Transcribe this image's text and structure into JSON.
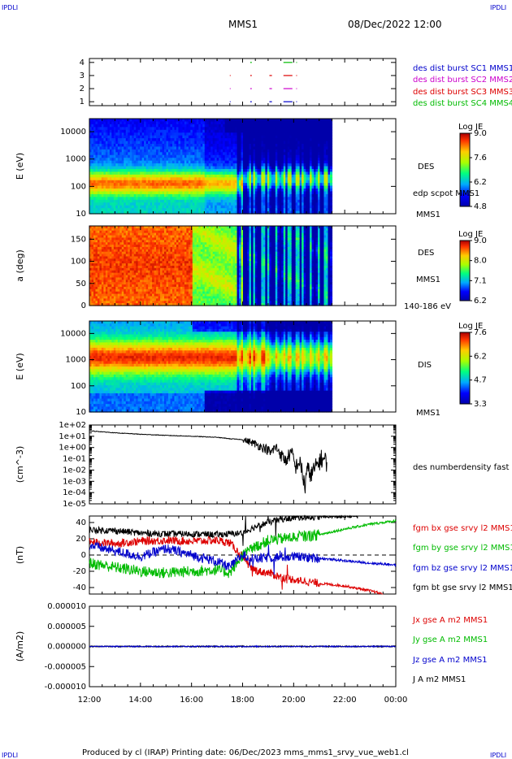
{
  "header": {
    "corner_left": "IPDLI",
    "corner_right": "IPDLI",
    "spacecraft": "MMS1",
    "datetime": "08/Dec/2022 12:00"
  },
  "footer": {
    "text": "Produced by cl (IRAP)   Printing date: 06/Dec/2023   mms_mms1_srvy_vue_web1.cl",
    "corner_left": "IPDLI",
    "corner_right": "IPDLI"
  },
  "time_axis": {
    "start": "12:00",
    "end": "00:00",
    "tick_labels": [
      "12:00",
      "14:00",
      "16:00",
      "18:00",
      "20:00",
      "22:00",
      "00:00"
    ],
    "data_end": "21:30"
  },
  "colors": {
    "mms1": "#0000cc",
    "mms2": "#cc00cc",
    "mms3": "#dd0000",
    "mms4": "#00bb00",
    "black": "#000000"
  },
  "chart_data": [
    {
      "id": "burst",
      "type": "scatter",
      "ylabel": "",
      "yticks": [
        "1",
        "2",
        "3",
        "4"
      ],
      "legend": [
        {
          "text": "des dist burst SC1 MMS1",
          "color": "#0000cc"
        },
        {
          "text": "des dist burst SC2 MMS2",
          "color": "#cc00cc"
        },
        {
          "text": "des dist burst SC3 MMS3",
          "color": "#dd0000"
        },
        {
          "text": "des dist burst SC4 MMS4",
          "color": "#00bb00"
        }
      ],
      "segments": [
        {
          "sc": 1,
          "t0": 17.5,
          "t1": 17.53
        },
        {
          "sc": 1,
          "t0": 18.3,
          "t1": 18.36
        },
        {
          "sc": 1,
          "t0": 19.05,
          "t1": 19.15
        },
        {
          "sc": 1,
          "t0": 19.6,
          "t1": 19.95
        },
        {
          "sc": 1,
          "t0": 20.1,
          "t1": 20.13
        },
        {
          "sc": 2,
          "t0": 17.5,
          "t1": 17.53
        },
        {
          "sc": 2,
          "t0": 18.3,
          "t1": 18.36
        },
        {
          "sc": 2,
          "t0": 19.05,
          "t1": 19.15
        },
        {
          "sc": 2,
          "t0": 19.6,
          "t1": 19.95
        },
        {
          "sc": 2,
          "t0": 20.1,
          "t1": 20.13
        },
        {
          "sc": 3,
          "t0": 17.5,
          "t1": 17.53
        },
        {
          "sc": 3,
          "t0": 18.3,
          "t1": 18.36
        },
        {
          "sc": 3,
          "t0": 19.05,
          "t1": 19.15
        },
        {
          "sc": 3,
          "t0": 19.6,
          "t1": 19.95
        },
        {
          "sc": 3,
          "t0": 20.1,
          "t1": 20.13
        },
        {
          "sc": 4,
          "t0": 18.3,
          "t1": 18.36
        },
        {
          "sc": 4,
          "t0": 19.6,
          "t1": 19.95
        },
        {
          "sc": 4,
          "t0": 20.1,
          "t1": 20.13
        }
      ]
    },
    {
      "id": "des_energy",
      "type": "heatmap",
      "ylabel": "E (eV)",
      "yticks": [
        "10",
        "100",
        "1000",
        "10000"
      ],
      "y_log": true,
      "ylim": [
        10,
        30000
      ],
      "right_labels": [
        "DES",
        "edp scpot MMS1",
        "MMS1"
      ],
      "colorbar": {
        "title": "Log JE",
        "min": 4.8,
        "max": 9.0,
        "ticks": [
          "9.0",
          "7.6",
          "6.2",
          "4.8"
        ]
      }
    },
    {
      "id": "des_pitch",
      "type": "heatmap",
      "ylabel": "a (deg)",
      "yticks": [
        "0",
        "50",
        "100",
        "150"
      ],
      "ylim": [
        0,
        180
      ],
      "right_labels": [
        "DES",
        "MMS1",
        "140-186 eV"
      ],
      "colorbar": {
        "title": "Log JE",
        "min": 6.2,
        "max": 9.0,
        "ticks": [
          "9.0",
          "8.0",
          "7.1",
          "6.2"
        ]
      }
    },
    {
      "id": "dis_energy",
      "type": "heatmap",
      "ylabel": "E (eV)",
      "yticks": [
        "10",
        "100",
        "1000",
        "10000"
      ],
      "y_log": true,
      "ylim": [
        10,
        30000
      ],
      "right_labels": [
        "DIS",
        "MMS1"
      ],
      "colorbar": {
        "title": "Log JE",
        "min": 3.3,
        "max": 7.6,
        "ticks": [
          "7.6",
          "6.2",
          "4.7",
          "3.3"
        ]
      }
    },
    {
      "id": "density",
      "type": "line",
      "ylabel": "(cm^-3)",
      "yticks": [
        "1e-05",
        "1e-04",
        "1e-03",
        "1e-02",
        "1e-01",
        "1e+00",
        "1e+01",
        "1e+02"
      ],
      "y_log": true,
      "ylim": [
        1e-05,
        100
      ],
      "legend": [
        {
          "text": "des numberdensity fast M",
          "color": "#000000"
        }
      ],
      "series": [
        {
          "color": "#000000",
          "t": [
            12.0,
            13.0,
            14.0,
            15.0,
            16.0,
            17.0,
            17.5,
            18.0,
            18.3,
            18.6,
            18.9,
            19.1,
            19.3,
            19.5,
            19.7,
            19.9,
            20.05,
            20.2,
            20.35,
            20.45,
            20.55,
            20.7,
            20.9,
            21.1,
            21.3
          ],
          "y": [
            30,
            20,
            15,
            12,
            10,
            8,
            6,
            5,
            3,
            1.5,
            0.8,
            0.3,
            1.0,
            0.2,
            0.05,
            0.3,
            0.01,
            0.05,
            0.002,
            0.0002,
            0.01,
            0.003,
            0.02,
            0.1,
            0.05
          ]
        }
      ]
    },
    {
      "id": "fgm",
      "type": "line",
      "ylabel": "(nT)",
      "yticks": [
        "-40",
        "-20",
        "0",
        "20",
        "40"
      ],
      "ylim": [
        -48,
        48
      ],
      "legend": [
        {
          "text": "fgm bx gse srvy l2 MMS1",
          "color": "#dd0000"
        },
        {
          "text": "fgm by gse srvy l2 MMS1",
          "color": "#00bb00"
        },
        {
          "text": "fgm bz gse srvy l2 MMS1",
          "color": "#0000cc"
        },
        {
          "text": "fgm bt gse srvy l2 MMS1",
          "color": "#000000"
        }
      ],
      "series": [
        {
          "color": "#000000",
          "t": [
            12.0,
            13.0,
            14.0,
            15.0,
            16.0,
            17.0,
            17.5,
            18.0,
            18.5,
            19.0,
            19.5,
            20.0,
            21.0,
            22.0,
            22.5
          ],
          "y": [
            31,
            30,
            27,
            26,
            26,
            25,
            26,
            27,
            35,
            40,
            44,
            46,
            47,
            47,
            48
          ]
        },
        {
          "color": "#dd0000",
          "t": [
            12.0,
            13.0,
            14.0,
            15.0,
            16.0,
            17.0,
            17.5,
            18.0,
            18.3,
            18.6,
            19.0,
            19.5,
            20.0,
            21.0,
            22.0,
            23.0,
            23.5
          ],
          "y": [
            16,
            14,
            17,
            18,
            17,
            18,
            15,
            -2,
            -15,
            -20,
            -22,
            -27,
            -30,
            -35,
            -38,
            -44,
            -48
          ]
        },
        {
          "color": "#00bb00",
          "t": [
            12.0,
            13.0,
            14.0,
            15.0,
            16.0,
            17.0,
            17.5,
            18.0,
            18.5,
            19.0,
            20.0,
            21.0,
            22.0,
            23.0,
            24.0
          ],
          "y": [
            -10,
            -15,
            -20,
            -22,
            -20,
            -18,
            -22,
            0,
            10,
            18,
            22,
            25,
            32,
            38,
            42
          ]
        },
        {
          "color": "#0000cc",
          "t": [
            12.0,
            13.0,
            14.0,
            15.0,
            16.0,
            17.0,
            17.5,
            18.0,
            18.5,
            19.0,
            20.0,
            21.0,
            22.0,
            23.0,
            24.0
          ],
          "y": [
            12,
            5,
            -2,
            8,
            0,
            -8,
            -15,
            0,
            -5,
            -3,
            -2,
            -4,
            -7,
            -10,
            -12
          ]
        }
      ],
      "reference_line": 0
    },
    {
      "id": "current",
      "type": "line",
      "ylabel": "(A/m2)",
      "yticks": [
        "-0.000010",
        "-0.000005",
        "0.000000",
        "0.000005",
        "0.000010"
      ],
      "ylim": [
        -1e-05,
        1e-05
      ],
      "legend": [
        {
          "text": "Jx gse A m2 MMS1",
          "color": "#dd0000"
        },
        {
          "text": "Jy gse A m2 MMS1",
          "color": "#00bb00"
        },
        {
          "text": "Jz gse A m2 MMS1",
          "color": "#0000cc"
        },
        {
          "text": "J A m2 MMS1",
          "color": "#000000"
        }
      ],
      "series": [
        {
          "color": "#000000",
          "t": [
            12.0,
            24.0
          ],
          "y": [
            0,
            0
          ]
        },
        {
          "color": "#0000cc",
          "t": [
            12.0,
            24.0
          ],
          "y": [
            0,
            0
          ]
        }
      ]
    }
  ]
}
